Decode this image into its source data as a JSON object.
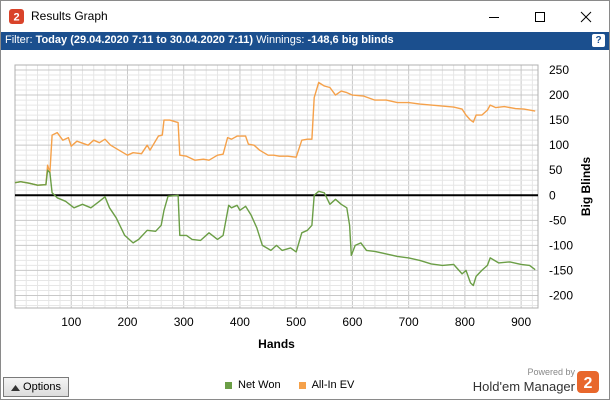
{
  "window": {
    "title": "Results Graph"
  },
  "filter": {
    "label": "Filter:",
    "value": "Today (29.04.2020 7:11 to 30.04.2020 7:11)",
    "winnings_label": "Winnings:",
    "winnings_value": "-148,6 big blinds",
    "help": "?"
  },
  "bottom": {
    "options_label": "Options",
    "powered_by": "Powered by",
    "brand": "Hold'em Manager"
  },
  "colors": {
    "net_won": "#6b9e46",
    "all_in_ev": "#f5a14a",
    "filter_bar": "#1b4f8e"
  },
  "chart_data": {
    "type": "line",
    "xlabel": "Hands",
    "ylabel": "Big Blinds",
    "xlim": [
      0,
      930
    ],
    "ylim": [
      -225,
      260
    ],
    "x_ticks": [
      100,
      200,
      300,
      400,
      500,
      600,
      700,
      800,
      900
    ],
    "y_ticks": [
      250,
      200,
      150,
      100,
      50,
      0,
      -50,
      -100,
      -150,
      -200
    ],
    "grid": true,
    "legend_position": "bottom",
    "series": [
      {
        "name": "Net Won",
        "points": [
          [
            0,
            25
          ],
          [
            10,
            27
          ],
          [
            25,
            24
          ],
          [
            40,
            20
          ],
          [
            55,
            21
          ],
          [
            58,
            50
          ],
          [
            62,
            45
          ],
          [
            66,
            5
          ],
          [
            75,
            -5
          ],
          [
            90,
            -12
          ],
          [
            105,
            -25
          ],
          [
            120,
            -18
          ],
          [
            135,
            -25
          ],
          [
            150,
            -12
          ],
          [
            160,
            -3
          ],
          [
            168,
            -25
          ],
          [
            180,
            -45
          ],
          [
            195,
            -80
          ],
          [
            210,
            -95
          ],
          [
            220,
            -88
          ],
          [
            235,
            -70
          ],
          [
            250,
            -72
          ],
          [
            260,
            -60
          ],
          [
            265,
            -30
          ],
          [
            272,
            -2
          ],
          [
            290,
            0
          ],
          [
            293,
            -80
          ],
          [
            305,
            -80
          ],
          [
            315,
            -88
          ],
          [
            330,
            -90
          ],
          [
            345,
            -75
          ],
          [
            360,
            -88
          ],
          [
            370,
            -80
          ],
          [
            380,
            -20
          ],
          [
            385,
            -25
          ],
          [
            395,
            -20
          ],
          [
            400,
            -30
          ],
          [
            410,
            -22
          ],
          [
            420,
            -40
          ],
          [
            430,
            -65
          ],
          [
            440,
            -100
          ],
          [
            455,
            -110
          ],
          [
            465,
            -100
          ],
          [
            475,
            -110
          ],
          [
            490,
            -105
          ],
          [
            500,
            -113
          ],
          [
            510,
            -75
          ],
          [
            520,
            -70
          ],
          [
            528,
            -60
          ],
          [
            532,
            0
          ],
          [
            540,
            8
          ],
          [
            550,
            5
          ],
          [
            560,
            -18
          ],
          [
            570,
            -8
          ],
          [
            580,
            -18
          ],
          [
            590,
            -25
          ],
          [
            595,
            -60
          ],
          [
            598,
            -120
          ],
          [
            605,
            -100
          ],
          [
            615,
            -95
          ],
          [
            625,
            -110
          ],
          [
            640,
            -112
          ],
          [
            660,
            -117
          ],
          [
            680,
            -122
          ],
          [
            700,
            -125
          ],
          [
            720,
            -130
          ],
          [
            740,
            -137
          ],
          [
            760,
            -140
          ],
          [
            780,
            -138
          ],
          [
            795,
            -157
          ],
          [
            802,
            -150
          ],
          [
            810,
            -175
          ],
          [
            815,
            -180
          ],
          [
            820,
            -162
          ],
          [
            830,
            -150
          ],
          [
            840,
            -140
          ],
          [
            845,
            -125
          ],
          [
            860,
            -135
          ],
          [
            880,
            -133
          ],
          [
            900,
            -138
          ],
          [
            915,
            -140
          ],
          [
            925,
            -148.6
          ]
        ]
      },
      {
        "name": "All-In EV",
        "points": [
          [
            0,
            25
          ],
          [
            10,
            27
          ],
          [
            25,
            24
          ],
          [
            40,
            20
          ],
          [
            55,
            21
          ],
          [
            58,
            60
          ],
          [
            62,
            45
          ],
          [
            66,
            120
          ],
          [
            75,
            125
          ],
          [
            85,
            110
          ],
          [
            95,
            115
          ],
          [
            100,
            98
          ],
          [
            110,
            108
          ],
          [
            130,
            100
          ],
          [
            140,
            110
          ],
          [
            150,
            105
          ],
          [
            160,
            112
          ],
          [
            170,
            100
          ],
          [
            185,
            90
          ],
          [
            200,
            80
          ],
          [
            210,
            85
          ],
          [
            225,
            83
          ],
          [
            235,
            100
          ],
          [
            240,
            90
          ],
          [
            255,
            118
          ],
          [
            262,
            120
          ],
          [
            265,
            150
          ],
          [
            275,
            150
          ],
          [
            290,
            145
          ],
          [
            293,
            80
          ],
          [
            305,
            78
          ],
          [
            320,
            70
          ],
          [
            335,
            72
          ],
          [
            345,
            70
          ],
          [
            360,
            80
          ],
          [
            370,
            82
          ],
          [
            378,
            115
          ],
          [
            385,
            112
          ],
          [
            395,
            118
          ],
          [
            410,
            118
          ],
          [
            415,
            102
          ],
          [
            425,
            100
          ],
          [
            435,
            90
          ],
          [
            450,
            80
          ],
          [
            460,
            80
          ],
          [
            470,
            78
          ],
          [
            485,
            78
          ],
          [
            500,
            76
          ],
          [
            510,
            110
          ],
          [
            520,
            112
          ],
          [
            528,
            112
          ],
          [
            532,
            195
          ],
          [
            540,
            225
          ],
          [
            550,
            218
          ],
          [
            560,
            215
          ],
          [
            570,
            200
          ],
          [
            580,
            208
          ],
          [
            590,
            205
          ],
          [
            600,
            200
          ],
          [
            620,
            198
          ],
          [
            640,
            190
          ],
          [
            660,
            190
          ],
          [
            680,
            185
          ],
          [
            700,
            185
          ],
          [
            720,
            182
          ],
          [
            740,
            180
          ],
          [
            760,
            178
          ],
          [
            780,
            176
          ],
          [
            795,
            172
          ],
          [
            802,
            160
          ],
          [
            810,
            150
          ],
          [
            815,
            146
          ],
          [
            820,
            160
          ],
          [
            830,
            160
          ],
          [
            840,
            170
          ],
          [
            845,
            180
          ],
          [
            855,
            175
          ],
          [
            870,
            177
          ],
          [
            890,
            173
          ],
          [
            905,
            172
          ],
          [
            925,
            168
          ]
        ]
      }
    ]
  }
}
